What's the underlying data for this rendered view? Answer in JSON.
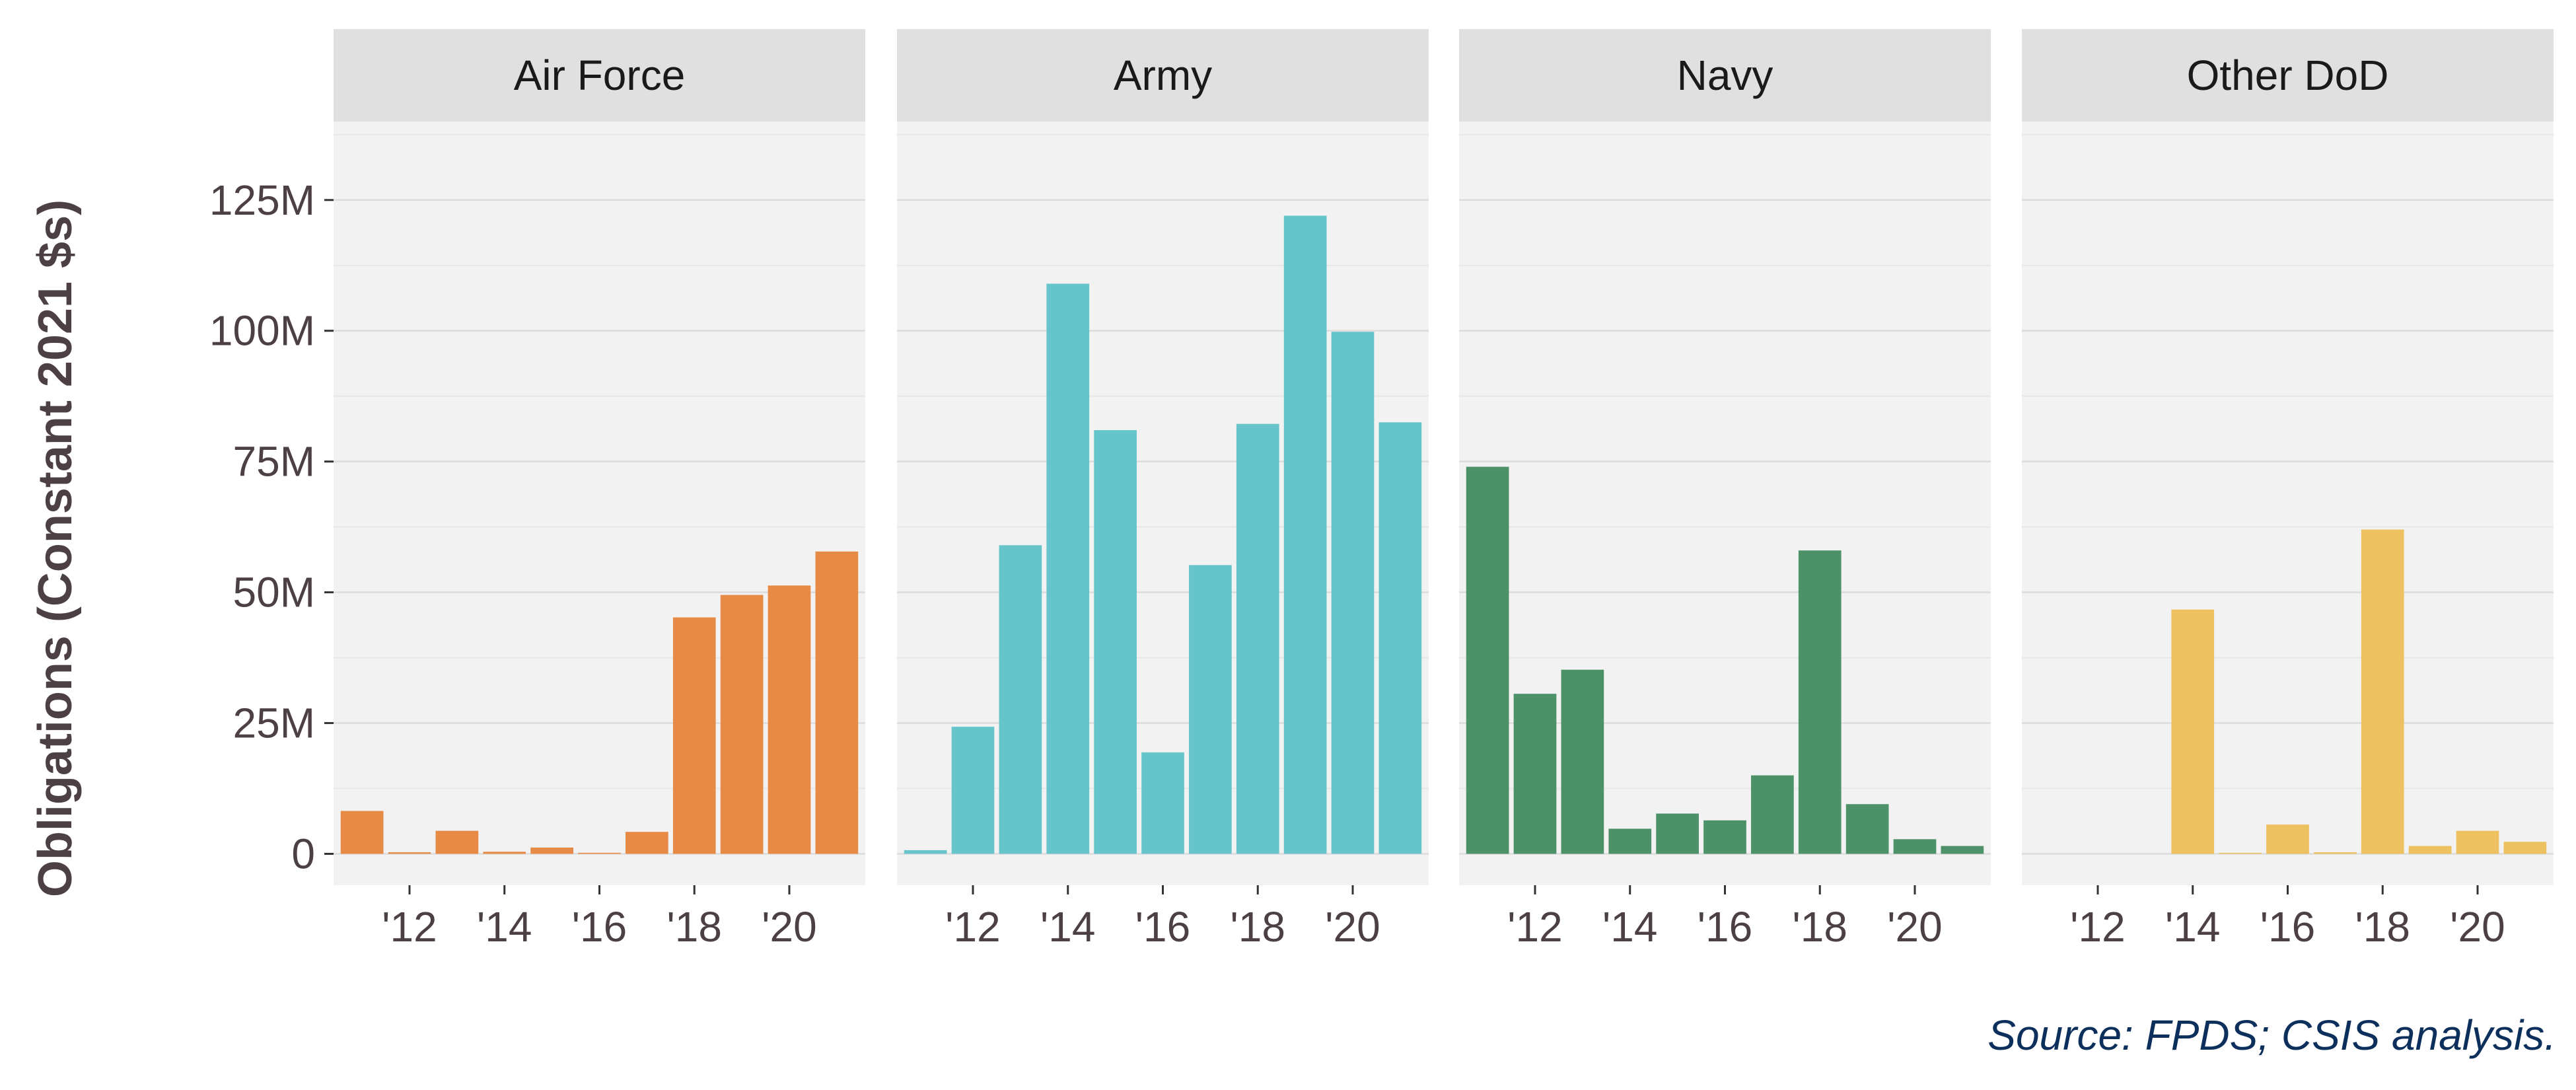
{
  "chart_data": {
    "type": "bar",
    "ylabel": "Obligations (Constant 2021 $s)",
    "xlabel": "",
    "ylim": [
      -6000000,
      140000000
    ],
    "x_range": [
      2010.4,
      2021.6
    ],
    "y_ticks": [
      {
        "value": 0,
        "label": "0"
      },
      {
        "value": 25000000,
        "label": "25M"
      },
      {
        "value": 50000000,
        "label": "50M"
      },
      {
        "value": 75000000,
        "label": "75M"
      },
      {
        "value": 100000000,
        "label": "100M"
      },
      {
        "value": 125000000,
        "label": "125M"
      }
    ],
    "x_ticks": [
      {
        "value": 2012,
        "label": "'12"
      },
      {
        "value": 2014,
        "label": "'14"
      },
      {
        "value": 2016,
        "label": "'16"
      },
      {
        "value": 2018,
        "label": "'18"
      },
      {
        "value": 2020,
        "label": "'20"
      }
    ],
    "years": [
      2011,
      2012,
      2013,
      2014,
      2015,
      2016,
      2017,
      2018,
      2019,
      2020,
      2021
    ],
    "grid": true,
    "legend": "none",
    "panel_background": "#f2f2f2",
    "strip_background": "#e0e0e0",
    "panels": [
      {
        "name": "Air Force",
        "color": "#e68a45",
        "values": [
          8200000,
          300000,
          4400000,
          400000,
          1200000,
          200000,
          4200000,
          45200000,
          49500000,
          51300000,
          57800000
        ]
      },
      {
        "name": "Army",
        "color": "#66c5cb",
        "values": [
          700000,
          24300000,
          59000000,
          109000000,
          81000000,
          19400000,
          55200000,
          82200000,
          122000000,
          99800000,
          82500000
        ]
      },
      {
        "name": "Navy",
        "color": "#4c9167",
        "values": [
          74000000,
          30600000,
          35200000,
          4800000,
          7700000,
          6400000,
          15000000,
          58000000,
          9500000,
          2800000,
          1500000
        ]
      },
      {
        "name": "Other DoD",
        "color": "#eec160",
        "values": [
          null,
          null,
          null,
          46700000,
          200000,
          5600000,
          300000,
          62000000,
          1500000,
          4400000,
          2300000
        ]
      }
    ]
  },
  "caption": "Source: FPDS; CSIS analysis."
}
